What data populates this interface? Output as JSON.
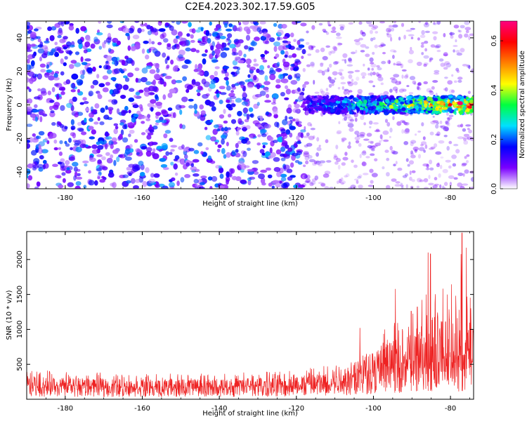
{
  "figure": {
    "title": "C2E4.2023.302.17.59.G05"
  },
  "chart_data": [
    {
      "type": "heatmap",
      "xlabel": "Height of straight line (km)",
      "ylabel": "Frequency (Hz)",
      "xlim": [
        -190,
        -74
      ],
      "ylim": [
        -50,
        50
      ],
      "x_ticks": [
        "-180",
        "-160",
        "-140",
        "-120",
        "-100",
        "-80"
      ],
      "x_tick_values": [
        -180,
        -160,
        -140,
        -120,
        -100,
        -80
      ],
      "y_ticks": [
        "40",
        "20",
        "0",
        "-20",
        "-40"
      ],
      "y_tick_values": [
        40,
        20,
        0,
        -20,
        -40
      ],
      "colorbar": {
        "label": "Normalized spectral amplitude",
        "range": [
          0.0,
          0.68
        ],
        "ticks": [
          "0.0",
          "0.2",
          "0.4",
          "0.6"
        ],
        "tick_values": [
          0.0,
          0.2,
          0.4,
          0.6
        ],
        "colormap": [
          "#ffffff",
          "#7a00ff",
          "#0000ff",
          "#00e0ff",
          "#00ff40",
          "#ffff00",
          "#ff8000",
          "#ff0000",
          "#ff0080"
        ]
      },
      "features": [
        {
          "description_type": "background_noise",
          "x_range": [
            -190,
            -118
          ],
          "y_range": [
            -50,
            50
          ],
          "amplitude": 0.05
        },
        {
          "description_type": "faint_noise",
          "x_range": [
            -118,
            -74
          ],
          "y_range": [
            -50,
            50
          ],
          "amplitude": 0.02
        },
        {
          "description_type": "signal_band",
          "x_range": [
            -118,
            -74
          ],
          "center_frequency": 0,
          "half_width": 5,
          "amplitude_start": 0.2,
          "amplitude_end": 0.65
        }
      ]
    },
    {
      "type": "line",
      "xlabel": "Height of straight line (km)",
      "ylabel": "SNR (10 * v/v)",
      "xlim": [
        -190,
        -74
      ],
      "ylim": [
        0,
        2400
      ],
      "x_ticks": [
        "-180",
        "-160",
        "-140",
        "-120",
        "-100",
        "-80"
      ],
      "x_tick_values": [
        -180,
        -160,
        -140,
        -120,
        -100,
        -80
      ],
      "y_ticks": [
        "500",
        "1000",
        "1500",
        "2000"
      ],
      "y_tick_values": [
        500,
        1000,
        1500,
        2000
      ],
      "series": [
        {
          "color": "#ee2222",
          "envelope": {
            "x": [
              -190,
              -180,
              -170,
              -160,
              -150,
              -140,
              -130,
              -120,
              -115,
              -110,
              -105,
              -100,
              -95,
              -90,
              -85,
              -80,
              -76,
              -74
            ],
            "y_max": [
              430,
              400,
              380,
              360,
              370,
              380,
              400,
              420,
              480,
              520,
              680,
              900,
              1100,
              1250,
              1900,
              1600,
              2350,
              1400
            ],
            "y_mean": [
              180,
              170,
              165,
              160,
              160,
              165,
              170,
              180,
              210,
              240,
              300,
              380,
              440,
              470,
              520,
              500,
              560,
              480
            ]
          },
          "peaks": [
            [
              -103.5,
              1020
            ],
            [
              -94.3,
              1580
            ],
            [
              -85.8,
              2100
            ],
            [
              -85.2,
              2080
            ],
            [
              -77.0,
              2380
            ],
            [
              -88.6,
              1320
            ],
            [
              -90.2,
              1260
            ]
          ]
        }
      ]
    }
  ]
}
